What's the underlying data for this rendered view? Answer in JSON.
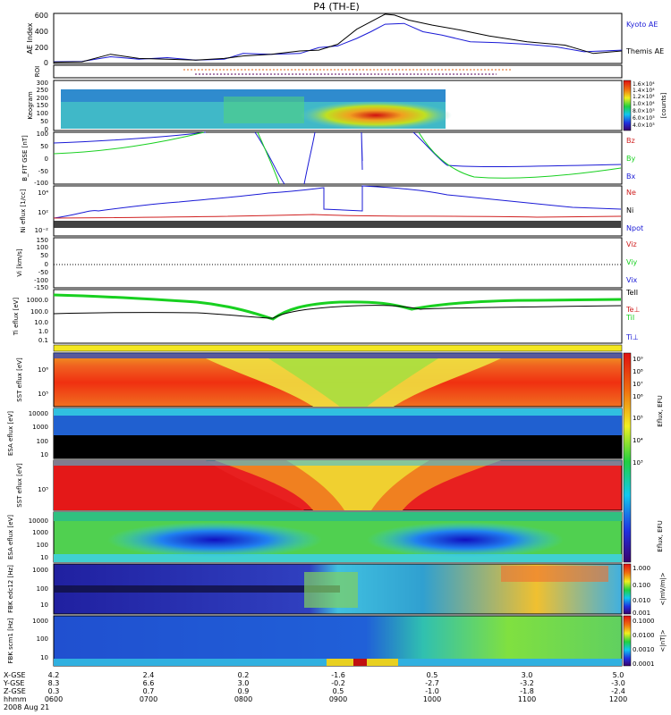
{
  "title": "P4 (TH-E)",
  "date_label": "2008 Aug 21",
  "colors": {
    "blue": "#1a1ad6",
    "green": "#18d020",
    "red": "#d02020",
    "black": "#000000"
  },
  "chart_data": [
    {
      "type": "line",
      "ylabel": "AE Index",
      "ylim": [
        0,
        600
      ],
      "yticks": [
        "600",
        "400",
        "200",
        "0"
      ],
      "legend": [
        {
          "name": "Kyoto AE",
          "color": "#1a1ad6"
        },
        {
          "name": "Themis AE",
          "color": "#000000"
        }
      ],
      "series": [
        {
          "name": "Kyoto AE",
          "x_hours": [
            6.0,
            6.3,
            6.6,
            6.9,
            7.2,
            7.5,
            7.8,
            8.0,
            8.3,
            8.6,
            8.8,
            9.0,
            9.2,
            9.35,
            9.5,
            9.7,
            9.9,
            10.1,
            10.4,
            10.7,
            11.0,
            11.3,
            11.6,
            12.0
          ],
          "values": [
            20,
            25,
            80,
            50,
            70,
            40,
            50,
            120,
            110,
            120,
            190,
            210,
            300,
            380,
            470,
            480,
            380,
            340,
            260,
            250,
            230,
            200,
            140,
            160
          ]
        },
        {
          "name": "Themis AE",
          "x_hours": [
            6.0,
            6.3,
            6.6,
            6.9,
            7.2,
            7.5,
            7.8,
            8.0,
            8.3,
            8.6,
            8.8,
            9.0,
            9.2,
            9.35,
            9.5,
            9.6,
            9.75,
            10.0,
            10.3,
            10.6,
            11.0,
            11.4,
            11.7,
            12.0
          ],
          "values": [
            15,
            20,
            110,
            60,
            50,
            40,
            60,
            90,
            110,
            150,
            160,
            230,
            410,
            500,
            590,
            580,
            520,
            460,
            400,
            330,
            260,
            220,
            120,
            150
          ]
        }
      ]
    },
    {
      "type": "scatter",
      "ylabel": "ROI",
      "note_rows": 2
    },
    {
      "type": "heatmap",
      "ylabel": "Keogram",
      "ylim": [
        0,
        300
      ],
      "yticks": [
        "300",
        "250",
        "200",
        "150",
        "100",
        "50",
        "0"
      ],
      "colorbar_label": "[counts]",
      "colorbar_ticks": [
        "1.6×10⁴",
        "1.4×10⁴",
        "1.2×10⁴",
        "1.0×10⁴",
        "8.0×10³",
        "6.0×10³",
        "4.0×10³"
      ]
    },
    {
      "type": "line",
      "ylabel": "B_FIT GSE [nT]",
      "ylim": [
        -100,
        100
      ],
      "yticks": [
        "100",
        "50",
        "0",
        "-50",
        "-100"
      ],
      "legend": [
        {
          "name": "Bz",
          "color": "#d02020"
        },
        {
          "name": "By",
          "color": "#18d020"
        },
        {
          "name": "Bx",
          "color": "#1a1ad6"
        }
      ]
    },
    {
      "type": "line",
      "ylabel": "Ni eflux [1/cc]",
      "yticks": [
        "10⁴",
        "10²",
        "10⁻²"
      ],
      "legend": [
        {
          "name": "Ne",
          "color": "#d02020"
        },
        {
          "name": "Ni",
          "color": "#000000"
        },
        {
          "name": "Npot",
          "color": "#1a1ad6"
        }
      ]
    },
    {
      "type": "line",
      "ylabel": "Vi [km/s]",
      "ylim": [
        -150,
        150
      ],
      "yticks": [
        "150",
        "100",
        "50",
        "0",
        "-50",
        "-100",
        "-150"
      ],
      "legend": [
        {
          "name": "Viz",
          "color": "#d02020"
        },
        {
          "name": "Viy",
          "color": "#18d020"
        },
        {
          "name": "Vix",
          "color": "#1a1ad6"
        }
      ]
    },
    {
      "type": "line",
      "ylabel": "Ti eflux [eV]",
      "yticks": [
        "1000.0",
        "100.0",
        "10.0",
        "1.0",
        "0.1"
      ],
      "legend": [
        {
          "name": "TeII",
          "color": "#000000"
        },
        {
          "name": "Te⊥",
          "color": "#d02020"
        },
        {
          "name": "TiI",
          "color": "#18d020"
        },
        {
          "name": "Ti⊥",
          "color": "#1a1ad6"
        }
      ]
    },
    {
      "type": "heatmap",
      "ylabel": "SST eflux [eV]",
      "yticks": [
        "10⁶",
        "10⁵"
      ]
    },
    {
      "type": "heatmap",
      "ylabel": "ESA eflux [eV]",
      "yticks": [
        "10000",
        "1000",
        "100",
        "10"
      ]
    },
    {
      "type": "heatmap",
      "ylabel": "SST eflux [eV]",
      "yticks": [
        "10⁵"
      ]
    },
    {
      "type": "heatmap",
      "ylabel": "ESA eflux [eV]",
      "yticks": [
        "10000",
        "1000",
        "100",
        "10"
      ]
    },
    {
      "type": "heatmap",
      "ylabel": "FBK edc12 [Hz]",
      "yticks": [
        "1000",
        "100",
        "10"
      ],
      "colorbar_label": "<|mV/m|>",
      "colorbar_ticks": [
        "1.000",
        "0.100",
        "0.010",
        "0.001"
      ]
    },
    {
      "type": "heatmap",
      "ylabel": "FBK scm1 [Hz]",
      "yticks": [
        "1000",
        "100",
        "10"
      ],
      "colorbar_label": "<|nT|>",
      "colorbar_ticks": [
        "0.1000",
        "0.0100",
        "0.0010",
        "0.0001"
      ]
    }
  ],
  "eflux_colorbar": {
    "label": "Eflux, EFU",
    "ticks": [
      "10⁹",
      "10⁸",
      "10⁷",
      "10⁶",
      "10⁵",
      "10⁴",
      "10³"
    ]
  },
  "x_axis": {
    "row_labels": [
      "X-GSE",
      "Y-GSE",
      "Z-GSE",
      "hhmm"
    ],
    "columns": [
      {
        "x": "4.2",
        "y": "8.3",
        "z": "0.3",
        "t": "0600"
      },
      {
        "x": "2.4",
        "y": "6.6",
        "z": "0.7",
        "t": "0700"
      },
      {
        "x": "0.2",
        "y": "3.0",
        "z": "0.9",
        "t": "0800"
      },
      {
        "x": "-1.6",
        "y": "-0.2",
        "z": "0.5",
        "t": "0900"
      },
      {
        "x": "0.5",
        "y": "-2.7",
        "z": "-1.0",
        "t": "1000"
      },
      {
        "x": "3.0",
        "y": "-3.2",
        "z": "-1.8",
        "t": "1100"
      },
      {
        "x": "5.0",
        "y": "-3.0",
        "z": "-2.4",
        "t": "1200"
      }
    ]
  }
}
